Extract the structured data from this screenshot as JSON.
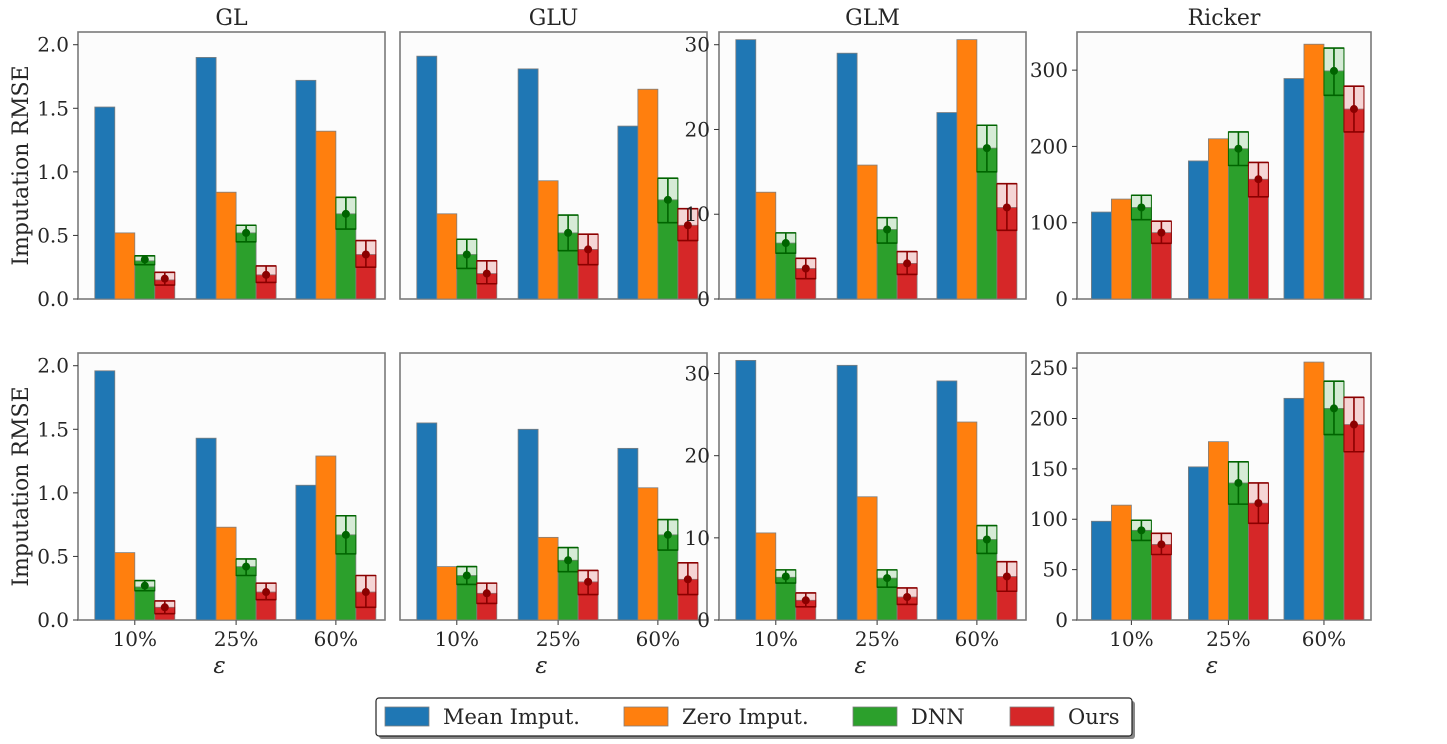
{
  "legend": {
    "items": [
      {
        "label": "Mean Imput.",
        "color": "#1f77b4"
      },
      {
        "label": "Zero Imput.",
        "color": "#ff7f0e"
      },
      {
        "label": "DNN",
        "color": "#2ca02c"
      },
      {
        "label": "Ours",
        "color": "#d62728"
      }
    ]
  },
  "colors": {
    "Mean Imput.": "#1f77b4",
    "Zero Imput.": "#ff7f0e",
    "DNN": "#2ca02c",
    "Ours": "#d62728",
    "DNN_dark": "#006400",
    "Ours_dark": "#8b0000"
  },
  "chart_data": [
    {
      "type": "bar",
      "row": 1,
      "title": "GL",
      "ylabel": "Imputation RMSE",
      "xlabel": "",
      "ylim": [
        0,
        2.1
      ],
      "yticks": [
        {
          "value": 0,
          "label": "0.0"
        },
        {
          "value": 0.5,
          "label": "0.5"
        },
        {
          "value": 1.0,
          "label": "1.0"
        },
        {
          "value": 1.5,
          "label": "1.5"
        },
        {
          "value": 2.0,
          "label": "2.0"
        }
      ],
      "categories": [
        "10%",
        "25%",
        "60%"
      ],
      "show_xticks": false,
      "series": [
        {
          "name": "Mean Imput.",
          "values": [
            1.51,
            1.9,
            1.72
          ]
        },
        {
          "name": "Zero Imput.",
          "values": [
            0.52,
            0.84,
            1.32
          ]
        },
        {
          "name": "DNN",
          "values": [
            0.3,
            0.52,
            0.67
          ],
          "mean": [
            0.31,
            0.52,
            0.67
          ],
          "lower": [
            0.27,
            0.45,
            0.55
          ],
          "upper": [
            0.34,
            0.58,
            0.8
          ]
        },
        {
          "name": "Ours",
          "values": [
            0.15,
            0.19,
            0.35
          ],
          "mean": [
            0.16,
            0.19,
            0.35
          ],
          "lower": [
            0.11,
            0.13,
            0.25
          ],
          "upper": [
            0.21,
            0.26,
            0.46
          ]
        }
      ]
    },
    {
      "type": "bar",
      "row": 1,
      "title": "GLU",
      "ylabel": "",
      "xlabel": "",
      "ylim": [
        0,
        2.1
      ],
      "yticks": [],
      "categories": [
        "10%",
        "25%",
        "60%"
      ],
      "show_xticks": false,
      "series": [
        {
          "name": "Mean Imput.",
          "values": [
            1.91,
            1.81,
            1.36
          ]
        },
        {
          "name": "Zero Imput.",
          "values": [
            0.67,
            0.93,
            1.65
          ]
        },
        {
          "name": "DNN",
          "values": [
            0.35,
            0.52,
            0.78
          ],
          "mean": [
            0.35,
            0.52,
            0.78
          ],
          "lower": [
            0.24,
            0.38,
            0.6
          ],
          "upper": [
            0.47,
            0.66,
            0.95
          ]
        },
        {
          "name": "Ours",
          "values": [
            0.2,
            0.39,
            0.58
          ],
          "mean": [
            0.2,
            0.39,
            0.58
          ],
          "lower": [
            0.12,
            0.27,
            0.46
          ],
          "upper": [
            0.3,
            0.51,
            0.71
          ]
        }
      ]
    },
    {
      "type": "bar",
      "row": 1,
      "title": "GLM",
      "ylabel": "",
      "xlabel": "",
      "ylim": [
        0,
        31.5
      ],
      "yticks": [
        {
          "value": 0,
          "label": "0"
        },
        {
          "value": 10,
          "label": "10"
        },
        {
          "value": 20,
          "label": "20"
        },
        {
          "value": 30,
          "label": "30"
        }
      ],
      "categories": [
        "10%",
        "25%",
        "60%"
      ],
      "show_xticks": false,
      "series": [
        {
          "name": "Mean Imput.",
          "values": [
            30.6,
            29.0,
            22.0
          ]
        },
        {
          "name": "Zero Imput.",
          "values": [
            12.6,
            15.8,
            30.6
          ]
        },
        {
          "name": "DNN",
          "values": [
            6.6,
            8.2,
            17.8
          ],
          "mean": [
            6.6,
            8.2,
            17.8
          ],
          "lower": [
            5.4,
            6.6,
            15.0
          ],
          "upper": [
            7.8,
            9.6,
            20.5
          ]
        },
        {
          "name": "Ours",
          "values": [
            3.6,
            4.2,
            10.8
          ],
          "mean": [
            3.6,
            4.2,
            10.8
          ],
          "lower": [
            2.4,
            2.9,
            8.1
          ],
          "upper": [
            4.8,
            5.6,
            13.6
          ]
        }
      ]
    },
    {
      "type": "bar",
      "row": 1,
      "title": "Ricker",
      "ylabel": "",
      "xlabel": "",
      "ylim": [
        0,
        350
      ],
      "yticks": [
        {
          "value": 0,
          "label": "0"
        },
        {
          "value": 100,
          "label": "100"
        },
        {
          "value": 200,
          "label": "200"
        },
        {
          "value": 300,
          "label": "300"
        }
      ],
      "categories": [
        "10%",
        "25%",
        "60%"
      ],
      "show_xticks": false,
      "series": [
        {
          "name": "Mean Imput.",
          "values": [
            114,
            181,
            289
          ]
        },
        {
          "name": "Zero Imput.",
          "values": [
            131,
            210,
            334
          ]
        },
        {
          "name": "DNN",
          "values": [
            120,
            197,
            299
          ],
          "mean": [
            120,
            197,
            299
          ],
          "lower": [
            104,
            175,
            267
          ],
          "upper": [
            136,
            219,
            329
          ]
        },
        {
          "name": "Ours",
          "values": [
            87,
            157,
            249
          ],
          "mean": [
            87,
            157,
            249
          ],
          "lower": [
            73,
            134,
            219
          ],
          "upper": [
            102,
            179,
            279
          ]
        }
      ]
    },
    {
      "type": "bar",
      "row": 2,
      "title": "",
      "ylabel": "Imputation RMSE",
      "xlabel": "ε",
      "ylim": [
        0,
        2.1
      ],
      "yticks": [
        {
          "value": 0,
          "label": "0.0"
        },
        {
          "value": 0.5,
          "label": "0.5"
        },
        {
          "value": 1.0,
          "label": "1.0"
        },
        {
          "value": 1.5,
          "label": "1.5"
        },
        {
          "value": 2.0,
          "label": "2.0"
        }
      ],
      "categories": [
        "10%",
        "25%",
        "60%"
      ],
      "show_xticks": true,
      "series": [
        {
          "name": "Mean Imput.",
          "values": [
            1.96,
            1.43,
            1.06
          ]
        },
        {
          "name": "Zero Imput.",
          "values": [
            0.53,
            0.73,
            1.29
          ]
        },
        {
          "name": "DNN",
          "values": [
            0.26,
            0.42,
            0.67
          ],
          "mean": [
            0.27,
            0.42,
            0.67
          ],
          "lower": [
            0.23,
            0.35,
            0.52
          ],
          "upper": [
            0.31,
            0.48,
            0.82
          ]
        },
        {
          "name": "Ours",
          "values": [
            0.1,
            0.22,
            0.22
          ],
          "mean": [
            0.1,
            0.22,
            0.22
          ],
          "lower": [
            0.05,
            0.16,
            0.1
          ],
          "upper": [
            0.15,
            0.29,
            0.35
          ]
        }
      ]
    },
    {
      "type": "bar",
      "row": 2,
      "title": "",
      "ylabel": "",
      "xlabel": "ε",
      "ylim": [
        0,
        2.1
      ],
      "yticks": [],
      "categories": [
        "10%",
        "25%",
        "60%"
      ],
      "show_xticks": true,
      "series": [
        {
          "name": "Mean Imput.",
          "values": [
            1.55,
            1.5,
            1.35
          ]
        },
        {
          "name": "Zero Imput.",
          "values": [
            0.42,
            0.65,
            1.04
          ]
        },
        {
          "name": "DNN",
          "values": [
            0.35,
            0.47,
            0.67
          ],
          "mean": [
            0.35,
            0.47,
            0.67
          ],
          "lower": [
            0.28,
            0.38,
            0.55
          ],
          "upper": [
            0.42,
            0.57,
            0.79
          ]
        },
        {
          "name": "Ours",
          "values": [
            0.21,
            0.3,
            0.32
          ],
          "mean": [
            0.21,
            0.3,
            0.32
          ],
          "lower": [
            0.13,
            0.2,
            0.2
          ],
          "upper": [
            0.29,
            0.39,
            0.45
          ]
        }
      ]
    },
    {
      "type": "bar",
      "row": 2,
      "title": "",
      "ylabel": "",
      "xlabel": "ε",
      "ylim": [
        0,
        32.5
      ],
      "yticks": [
        {
          "value": 0,
          "label": "0"
        },
        {
          "value": 10,
          "label": "10"
        },
        {
          "value": 20,
          "label": "20"
        },
        {
          "value": 30,
          "label": "30"
        }
      ],
      "categories": [
        "10%",
        "25%",
        "60%"
      ],
      "show_xticks": true,
      "series": [
        {
          "name": "Mean Imput.",
          "values": [
            31.6,
            31.0,
            29.1
          ]
        },
        {
          "name": "Zero Imput.",
          "values": [
            10.6,
            15.0,
            24.1
          ]
        },
        {
          "name": "DNN",
          "values": [
            5.2,
            5.1,
            9.8
          ],
          "mean": [
            5.3,
            5.1,
            9.8
          ],
          "lower": [
            4.5,
            4.0,
            8.1
          ],
          "upper": [
            6.1,
            6.1,
            11.5
          ]
        },
        {
          "name": "Ours",
          "values": [
            2.4,
            2.8,
            5.3
          ],
          "mean": [
            2.4,
            2.8,
            5.3
          ],
          "lower": [
            1.6,
            1.9,
            3.5
          ],
          "upper": [
            3.3,
            3.9,
            7.1
          ]
        }
      ]
    },
    {
      "type": "bar",
      "row": 2,
      "title": "",
      "ylabel": "",
      "xlabel": "ε",
      "ylim": [
        0,
        265
      ],
      "yticks": [
        {
          "value": 0,
          "label": "0"
        },
        {
          "value": 50,
          "label": "50"
        },
        {
          "value": 100,
          "label": "100"
        },
        {
          "value": 150,
          "label": "150"
        },
        {
          "value": 200,
          "label": "200"
        },
        {
          "value": 250,
          "label": "250"
        }
      ],
      "categories": [
        "10%",
        "25%",
        "60%"
      ],
      "show_xticks": true,
      "series": [
        {
          "name": "Mean Imput.",
          "values": [
            98,
            152,
            220
          ]
        },
        {
          "name": "Zero Imput.",
          "values": [
            114,
            177,
            256
          ]
        },
        {
          "name": "DNN",
          "values": [
            89,
            136,
            210
          ],
          "mean": [
            89,
            136,
            210
          ],
          "lower": [
            79,
            115,
            184
          ],
          "upper": [
            99,
            157,
            237
          ]
        },
        {
          "name": "Ours",
          "values": [
            75,
            116,
            194
          ],
          "mean": [
            75,
            116,
            194
          ],
          "lower": [
            65,
            96,
            167
          ],
          "upper": [
            86,
            136,
            221
          ]
        }
      ]
    }
  ]
}
